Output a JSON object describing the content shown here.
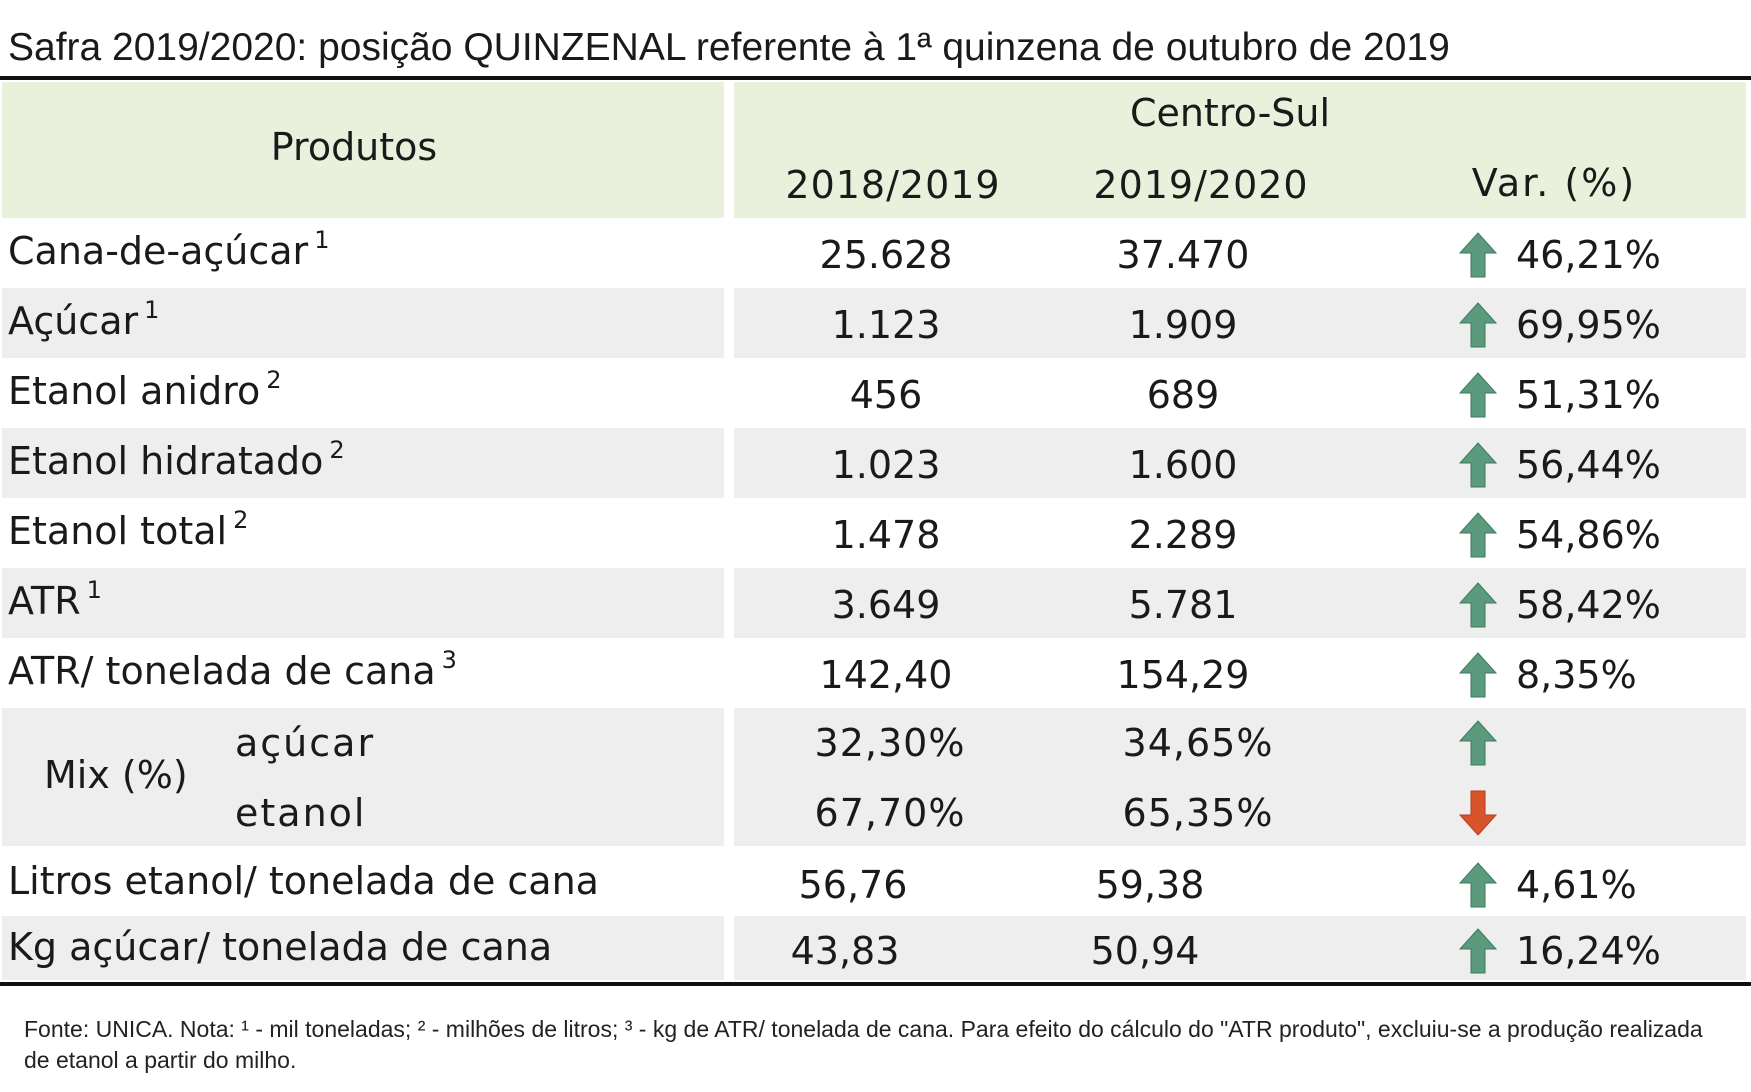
{
  "title": "Safra 2019/2020: posição QUINZENAL referente à 1ª quinzena de outubro de 2019",
  "header": {
    "produtos": "Produtos",
    "region": "Centro-Sul",
    "col_2018": "2018/2019",
    "col_2019": "2019/2020",
    "col_var": "Var. (%)"
  },
  "rows": [
    {
      "label": "Cana-de-açúcar",
      "sup": "1",
      "v2018": "25.628",
      "v2019": "37.470",
      "var": "46,21%",
      "trend": "up"
    },
    {
      "label": "Açúcar",
      "sup": "1",
      "v2018": "1.123",
      "v2019": "1.909",
      "var": "69,95%",
      "trend": "up"
    },
    {
      "label": "Etanol anidro",
      "sup": "2",
      "v2018": "456",
      "v2019": "689",
      "var": "51,31%",
      "trend": "up"
    },
    {
      "label": "Etanol hidratado",
      "sup": "2",
      "v2018": "1.023",
      "v2019": "1.600",
      "var": "56,44%",
      "trend": "up"
    },
    {
      "label": "Etanol total",
      "sup": "2",
      "v2018": "1.478",
      "v2019": "2.289",
      "var": "54,86%",
      "trend": "up"
    },
    {
      "label": "ATR",
      "sup": "1",
      "v2018": "3.649",
      "v2019": "5.781",
      "var": "58,42%",
      "trend": "up"
    },
    {
      "label": "ATR/ tonelada de cana",
      "sup": "3",
      "v2018": "142,40",
      "v2019": "154,29",
      "var": "8,35%",
      "trend": "up"
    }
  ],
  "mix": {
    "label": "Mix (%)",
    "acucar": {
      "label": "açúcar",
      "v2018": "32,30%",
      "v2019": "34,65%",
      "trend": "up"
    },
    "etanol": {
      "label": "etanol",
      "v2018": "67,70%",
      "v2019": "65,35%",
      "trend": "down"
    }
  },
  "rows_bottom": [
    {
      "label": "Litros etanol/ tonelada de cana",
      "v2018": "56,76",
      "v2019": "59,38",
      "var": "4,61%",
      "trend": "up"
    },
    {
      "label": "Kg açúcar/ tonelada de cana",
      "v2018": "43,83",
      "v2019": "50,94",
      "var": "16,24%",
      "trend": "up"
    }
  ],
  "footnote": "Fonte: UNICA. Nota: ¹ - mil toneladas; ² - milhões de litros; ³ - kg de ATR/ tonelada de cana. Para efeito do cálculo do \"ATR produto\", excluiu-se a produção realizada de etanol a partir do milho.",
  "colors": {
    "up_arrow": "#5b9a7c",
    "down_arrow": "#d9532b",
    "header_bg": "#e9f1dc",
    "stripe_bg": "#eeeeee"
  }
}
